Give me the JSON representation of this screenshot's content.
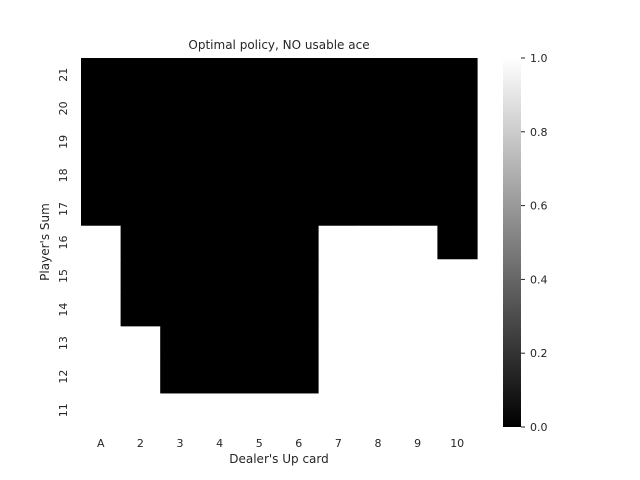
{
  "chart_data": {
    "type": "heatmap",
    "title": "Optimal policy, NO usable ace",
    "xlabel": "Dealer's Up card",
    "ylabel": "Player's Sum",
    "x_categories": [
      "A",
      "2",
      "3",
      "4",
      "5",
      "6",
      "7",
      "8",
      "9",
      "10"
    ],
    "y_categories": [
      "21",
      "20",
      "19",
      "18",
      "17",
      "16",
      "15",
      "14",
      "13",
      "12",
      "11"
    ],
    "values": [
      [
        0,
        0,
        0,
        0,
        0,
        0,
        0,
        0,
        0,
        0
      ],
      [
        0,
        0,
        0,
        0,
        0,
        0,
        0,
        0,
        0,
        0
      ],
      [
        0,
        0,
        0,
        0,
        0,
        0,
        0,
        0,
        0,
        0
      ],
      [
        0,
        0,
        0,
        0,
        0,
        0,
        0,
        0,
        0,
        0
      ],
      [
        0,
        0,
        0,
        0,
        0,
        0,
        0,
        0,
        0,
        0
      ],
      [
        1,
        0,
        0,
        0,
        0,
        0,
        1,
        1,
        1,
        0
      ],
      [
        1,
        0,
        0,
        0,
        0,
        0,
        1,
        1,
        1,
        1
      ],
      [
        1,
        0,
        0,
        0,
        0,
        0,
        1,
        1,
        1,
        1
      ],
      [
        1,
        1,
        0,
        0,
        0,
        0,
        1,
        1,
        1,
        1
      ],
      [
        1,
        1,
        0,
        0,
        0,
        0,
        1,
        1,
        1,
        1
      ],
      [
        1,
        1,
        1,
        1,
        1,
        1,
        1,
        1,
        1,
        1
      ]
    ],
    "colormap": {
      "low_color": "#000000",
      "high_color": "#ffffff"
    },
    "colorbar": {
      "range": [
        0.0,
        1.0
      ],
      "ticks": [
        "0.0",
        "0.2",
        "0.4",
        "0.6",
        "0.8",
        "1.0"
      ]
    }
  }
}
